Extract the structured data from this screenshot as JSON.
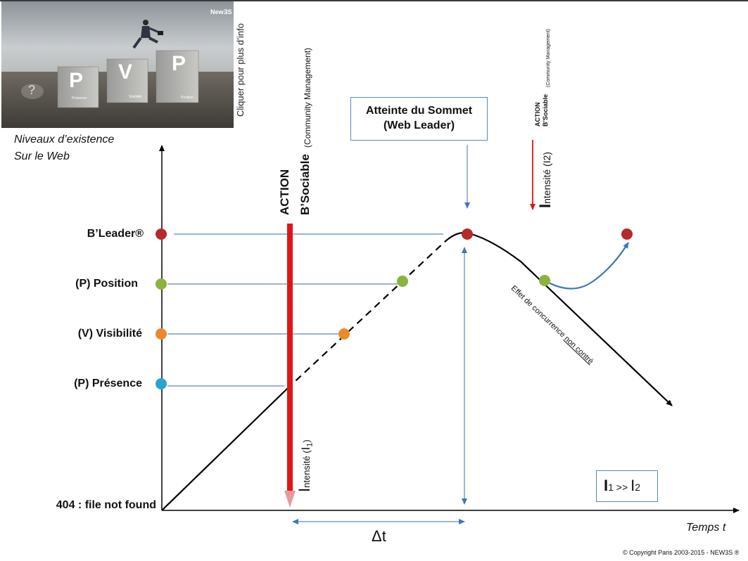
{
  "thumbnail": {
    "brand": "NewƎS",
    "letters": [
      "P",
      "V",
      "P"
    ],
    "captions": [
      "Présence",
      "Visibilité",
      "Position"
    ],
    "question": "?",
    "link_text": "Cliquer pour plus d’info"
  },
  "y_axis": {
    "title_line1": "Niveaux d’existence",
    "title_line2": "Sur le Web",
    "levels": [
      "B’Leader®",
      "(P) Position",
      "(V) Visibilité",
      "(P) Présence",
      "404 : file not found"
    ]
  },
  "x_axis": {
    "label": "Temps t",
    "delta": "Δt"
  },
  "action1": {
    "title": "ACTION",
    "name": "B’Sociable",
    "sub": "(Community Management)",
    "intensity_I": "I",
    "intensity_text": "ntensité (",
    "intensity_idx": "I",
    "intensity_sub": "1",
    "intensity_close": ")"
  },
  "action2": {
    "title": "ACTION",
    "name": "B’Sociable",
    "sub": "(Community Management)",
    "intensity_I": "I",
    "intensity_text": "ntensité (I2)"
  },
  "summit_box": {
    "line1": "Atteinte du Sommet",
    "line2": "(Web Leader)"
  },
  "effect": {
    "text": "Effet de concurrence ",
    "underlined": "non contré"
  },
  "ratio_box": {
    "a": "I",
    "a_sub": "1",
    "op": " >> ",
    "b": "I",
    "b_sub": "2"
  },
  "copyright": "© Copyright Paris 2003-2015 - NEW3S ®",
  "colors": {
    "red_dot": "#b52a2a",
    "green_dot": "#8ab43c",
    "orange_dot": "#ea8a2c",
    "blue_dot": "#2aa3cf",
    "action_red": "#e01515",
    "line_blue": "#5b8bb9",
    "arrow_blue": "#3d78b5"
  }
}
